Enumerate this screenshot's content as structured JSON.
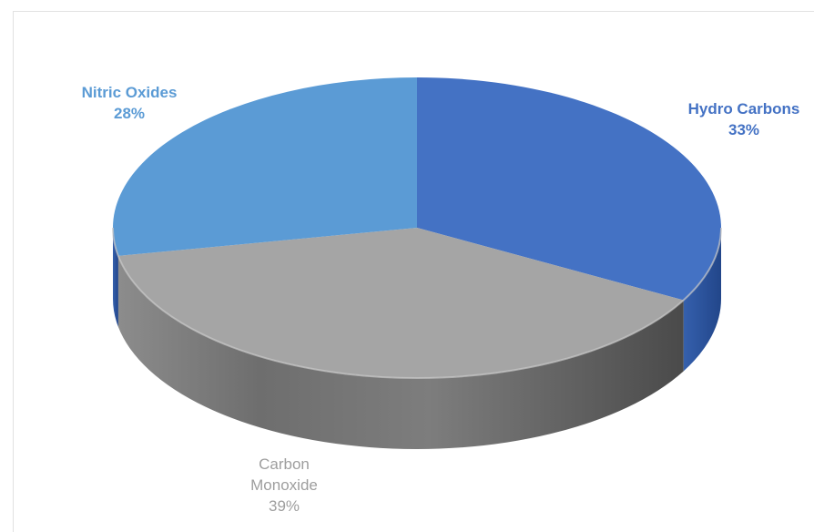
{
  "chart_data": {
    "type": "pie",
    "title": "",
    "style": "3d",
    "slices": [
      {
        "label": "Hydro Carbons",
        "value": 33,
        "value_label": "33%",
        "color": "#4472c4",
        "label_color": "#4472c4"
      },
      {
        "label": "Carbon Monoxide",
        "value": 39,
        "value_label": "39%",
        "color": "#a5a5a5",
        "label_color": "#9e9e9e"
      },
      {
        "label": "Nitric Oxides",
        "value": 28,
        "value_label": "28%",
        "color": "#5b9bd5",
        "label_color": "#5b9bd5"
      }
    ],
    "legend": "none"
  }
}
